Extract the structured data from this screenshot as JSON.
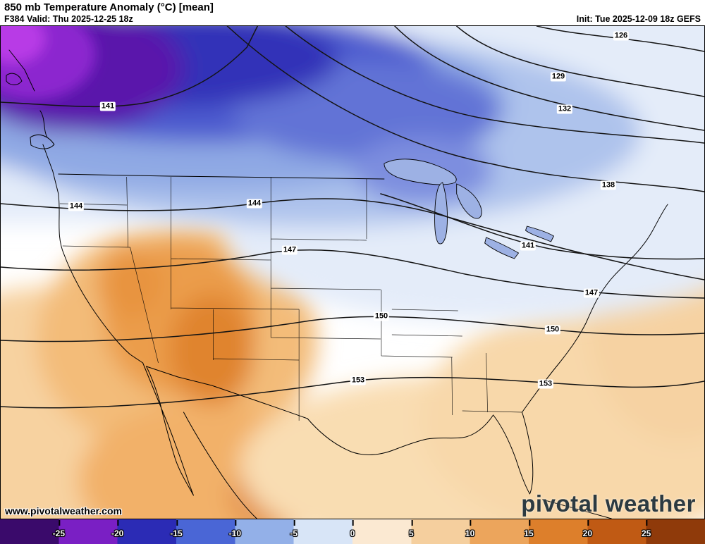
{
  "header": {
    "title": "850 mb Temperature Anomaly (°C) [mean]",
    "valid": "F384 Valid: Thu 2025-12-25 18z",
    "init": "Init: Tue 2025-12-09 18z GEFS"
  },
  "map": {
    "contour_labels": [
      "141",
      "144",
      "144",
      "147",
      "150",
      "153",
      "126",
      "129",
      "132",
      "138",
      "141",
      "147",
      "150",
      "153"
    ],
    "watermark": "www.pivotalweather.com",
    "logo": "pivotal weather"
  },
  "colorbar": {
    "ticks": [
      "-25",
      "-20",
      "-15",
      "-10",
      "-5",
      "0",
      "5",
      "10",
      "15",
      "20",
      "25"
    ],
    "range": [
      -30,
      30
    ],
    "segments": [
      "#3a0a6b",
      "#7a1fc4",
      "#2b2bb5",
      "#4a66d6",
      "#93b0e8",
      "#d8e5f7",
      "#fbe9d2",
      "#f5cf9e",
      "#eca55c",
      "#dd7f2b",
      "#c05a14",
      "#8f3a0a"
    ]
  }
}
